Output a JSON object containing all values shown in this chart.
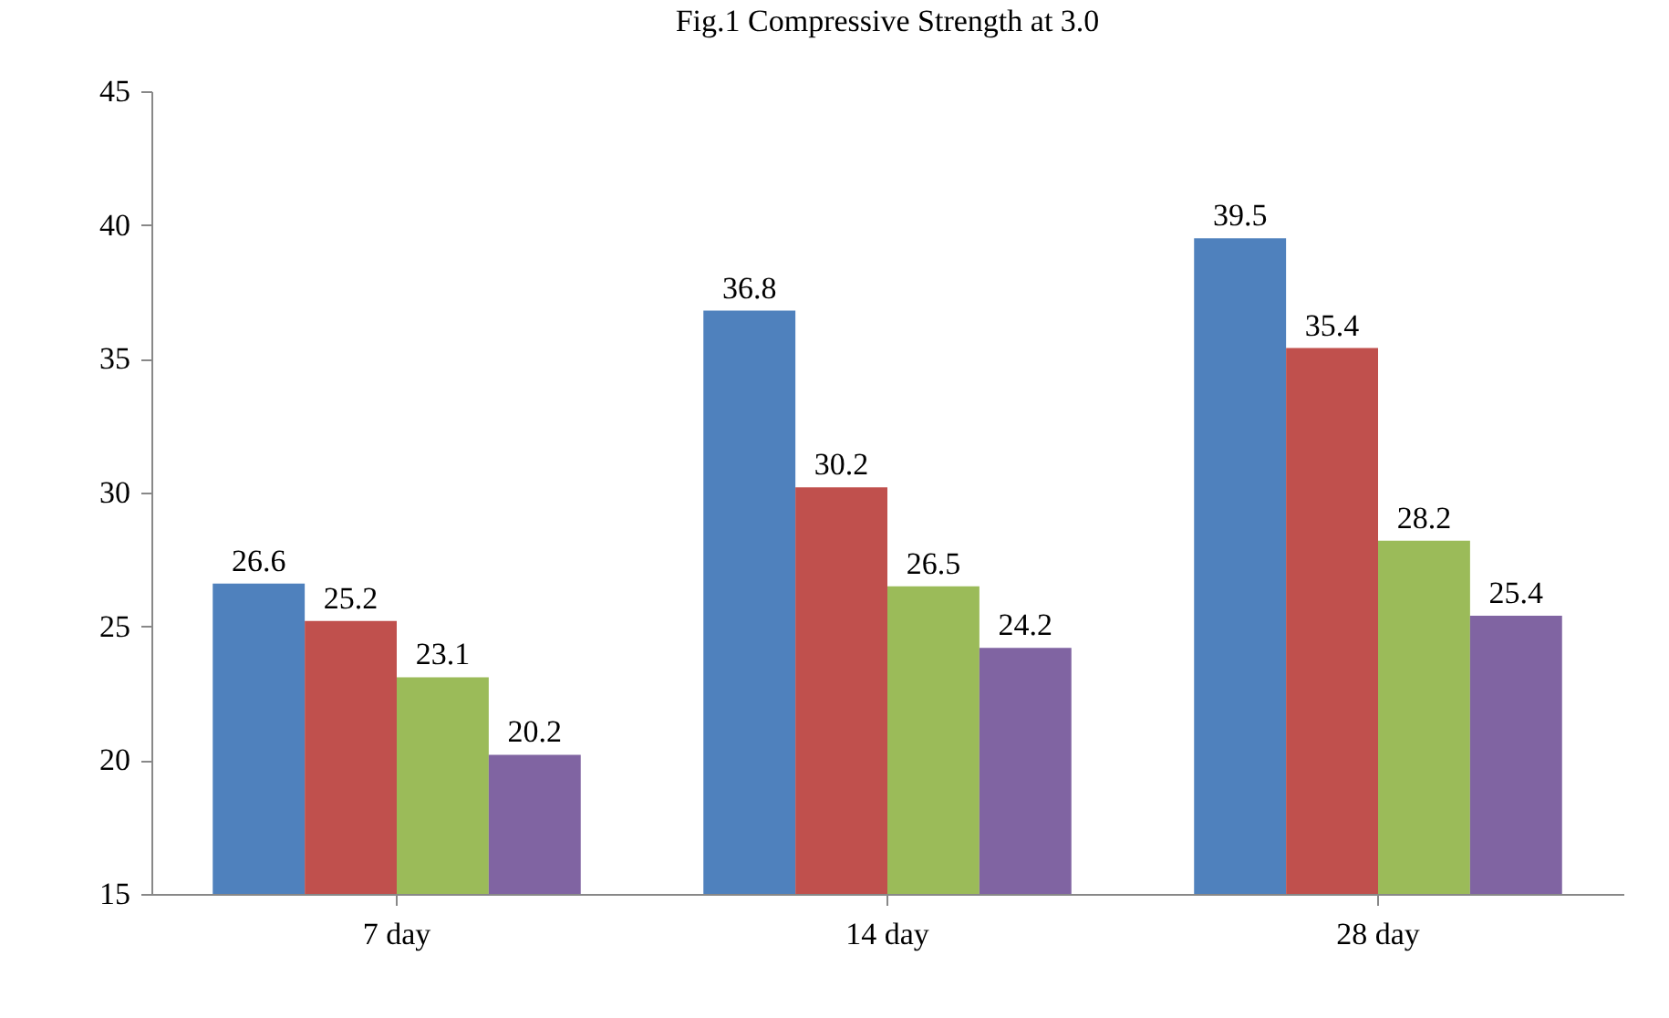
{
  "chart_data": {
    "type": "bar",
    "title": "Fig.1 Compressive Strength at 3.0",
    "categories": [
      "7 day",
      "14 day",
      "28 day"
    ],
    "series": [
      {
        "color": "#4f81bd",
        "values": [
          26.6,
          36.8,
          39.5
        ]
      },
      {
        "color": "#c0504d",
        "values": [
          25.2,
          30.2,
          35.4
        ]
      },
      {
        "color": "#9bbb59",
        "values": [
          23.1,
          26.5,
          28.2
        ]
      },
      {
        "color": "#8064a2",
        "values": [
          20.2,
          24.2,
          25.4
        ]
      }
    ],
    "ylim": [
      15,
      45
    ],
    "yticks": [
      15,
      20,
      25,
      30,
      35,
      40,
      45
    ],
    "grid": false,
    "data_labels": true
  }
}
